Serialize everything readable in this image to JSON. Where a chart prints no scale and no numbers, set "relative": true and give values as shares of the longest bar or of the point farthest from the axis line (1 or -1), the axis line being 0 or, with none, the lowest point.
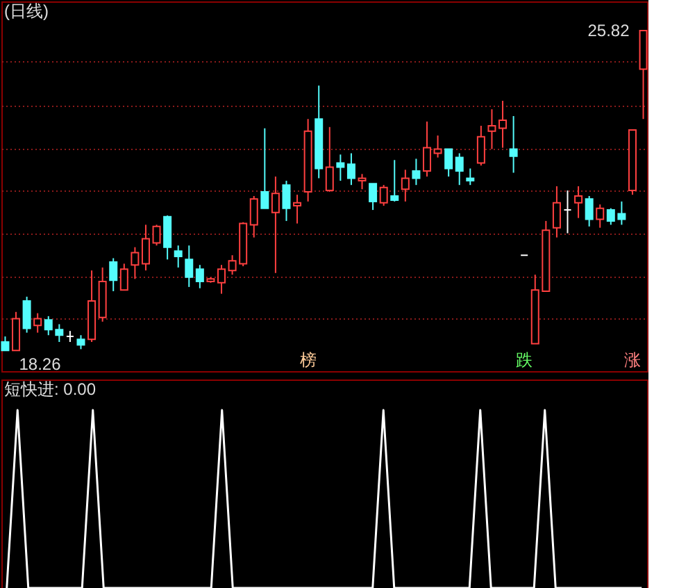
{
  "chart_data": [
    {
      "type": "candlestick",
      "title": "(日线)",
      "categories": [
        null,
        null,
        null,
        null,
        null,
        null,
        null,
        null,
        null,
        null,
        null,
        null,
        null,
        null,
        null,
        null,
        null,
        null,
        null,
        null,
        null,
        null,
        null,
        null,
        null,
        null,
        null,
        null,
        null,
        null,
        null,
        null,
        null,
        null,
        null,
        null,
        null,
        null,
        null,
        null,
        null,
        null,
        null,
        null,
        null,
        null,
        null,
        null,
        null,
        null,
        null,
        null,
        null,
        null,
        null,
        null,
        null,
        null,
        null,
        null
      ],
      "ohlc": [
        [
          18.46,
          18.59,
          18.26,
          18.26
        ],
        [
          18.26,
          19.17,
          18.26,
          19.01
        ],
        [
          19.43,
          19.53,
          18.68,
          18.78
        ],
        [
          18.85,
          19.14,
          18.68,
          19.01
        ],
        [
          18.98,
          19.07,
          18.62,
          18.75
        ],
        [
          18.75,
          18.88,
          18.46,
          18.62
        ],
        [
          18.59,
          18.72,
          18.46,
          18.59
        ],
        [
          18.52,
          18.62,
          18.29,
          18.39
        ],
        [
          18.52,
          20.15,
          18.46,
          19.43
        ],
        [
          19.04,
          20.22,
          18.94,
          19.89
        ],
        [
          20.35,
          20.44,
          19.66,
          19.92
        ],
        [
          19.69,
          20.31,
          19.69,
          20.18
        ],
        [
          20.28,
          20.7,
          19.95,
          20.57
        ],
        [
          20.31,
          21.23,
          20.15,
          20.9
        ],
        [
          20.8,
          21.23,
          20.74,
          21.19
        ],
        [
          21.42,
          21.45,
          20.41,
          20.7
        ],
        [
          20.61,
          20.74,
          20.22,
          20.48
        ],
        [
          20.41,
          20.74,
          19.76,
          19.99
        ],
        [
          20.18,
          20.28,
          19.73,
          19.89
        ],
        [
          19.89,
          19.99,
          19.86,
          19.95
        ],
        [
          19.86,
          20.28,
          19.6,
          20.18
        ],
        [
          20.15,
          20.51,
          20.05,
          20.38
        ],
        [
          20.31,
          21.29,
          20.25,
          21.26
        ],
        [
          21.23,
          21.91,
          20.93,
          21.84
        ],
        [
          22.01,
          23.51,
          21.62,
          21.62
        ],
        [
          21.52,
          22.37,
          20.09,
          21.97
        ],
        [
          22.17,
          22.27,
          21.32,
          21.62
        ],
        [
          21.68,
          21.94,
          21.26,
          21.75
        ],
        [
          22.01,
          23.73,
          21.78,
          23.44
        ],
        [
          23.73,
          24.52,
          22.33,
          22.56
        ],
        [
          22.04,
          23.54,
          22.01,
          22.59
        ],
        [
          22.69,
          22.89,
          22.27,
          22.59
        ],
        [
          22.66,
          22.92,
          22.17,
          22.33
        ],
        [
          22.27,
          22.43,
          22.07,
          22.33
        ],
        [
          22.2,
          22.2,
          21.58,
          21.78
        ],
        [
          21.75,
          22.17,
          21.68,
          22.11
        ],
        [
          21.91,
          22.76,
          21.78,
          21.81
        ],
        [
          22.07,
          22.53,
          21.78,
          22.33
        ],
        [
          22.5,
          22.79,
          22.17,
          22.33
        ],
        [
          22.5,
          23.67,
          22.37,
          23.05
        ],
        [
          22.92,
          23.34,
          22.82,
          23.02
        ],
        [
          23.02,
          23.02,
          22.37,
          22.56
        ],
        [
          22.82,
          22.92,
          22.17,
          22.5
        ],
        [
          22.33,
          22.56,
          22.17,
          22.27
        ],
        [
          22.69,
          23.57,
          22.63,
          23.31
        ],
        [
          23.44,
          23.96,
          23.02,
          23.57
        ],
        [
          23.51,
          24.16,
          23.05,
          23.7
        ],
        [
          23.02,
          23.8,
          22.46,
          22.85
        ],
        [
          20.51,
          20.51,
          20.51,
          20.51
        ],
        [
          18.42,
          20.05,
          18.42,
          19.69
        ],
        [
          19.66,
          21.32,
          19.66,
          21.1
        ],
        [
          21.16,
          22.14,
          20.93,
          21.75
        ],
        [
          21.58,
          22.04,
          21.03,
          21.58
        ],
        [
          21.75,
          22.14,
          21.39,
          21.91
        ],
        [
          21.84,
          21.91,
          21.19,
          21.36
        ],
        [
          21.36,
          21.71,
          21.16,
          21.62
        ],
        [
          21.58,
          21.62,
          21.23,
          21.32
        ],
        [
          21.49,
          21.78,
          21.23,
          21.36
        ],
        [
          22.04,
          23.47,
          21.94,
          23.47
        ],
        [
          24.91,
          25.82,
          23.73,
          25.82
        ]
      ],
      "colors": [
        "#54fcfc",
        "#ff4040",
        "#54fcfc",
        "#ff4040",
        "#54fcfc",
        "#54fcfc",
        "#ffffff",
        "#54fcfc",
        "#ff4040",
        "#ff4040",
        "#54fcfc",
        "#ff4040",
        "#ff4040",
        "#ff4040",
        "#ff4040",
        "#54fcfc",
        "#54fcfc",
        "#54fcfc",
        "#54fcfc",
        "#ff4040",
        "#ff4040",
        "#ff4040",
        "#ff4040",
        "#ff4040",
        "#54fcfc",
        "#ff4040",
        "#54fcfc",
        "#ff4040",
        "#ff4040",
        "#54fcfc",
        "#ff4040",
        "#54fcfc",
        "#54fcfc",
        "#ff4040",
        "#54fcfc",
        "#ff4040",
        "#54fcfc",
        "#ff4040",
        "#54fcfc",
        "#ff4040",
        "#ff4040",
        "#54fcfc",
        "#54fcfc",
        "#54fcfc",
        "#ff4040",
        "#ff4040",
        "#ff4040",
        "#54fcfc",
        "#ffffff",
        "#ff4040",
        "#ff4040",
        "#ff4040",
        "#ffffff",
        "#ff4040",
        "#54fcfc",
        "#ff4040",
        "#54fcfc",
        "#54fcfc",
        "#ff4040",
        "#ff4040"
      ],
      "ylim": [
        17.77,
        26.51
      ],
      "yticks": [
        {
          "value": 19.01,
          "label": null
        },
        {
          "value": 19.99,
          "label": null
        },
        {
          "value": 21.03,
          "label": null
        },
        {
          "value": 22.04,
          "label": null
        },
        {
          "value": 23.02,
          "label": null
        },
        {
          "value": 24.06,
          "label": null
        },
        {
          "value": 25.1,
          "label": null
        }
      ],
      "grid": true,
      "tick_labels": false,
      "annotations": [
        "25.82",
        "18.26",
        "榜",
        "跌",
        "涨"
      ]
    },
    {
      "type": "line",
      "title": "短快进: 0.00",
      "relative": true,
      "tick_labels": false,
      "categories": [
        null,
        null,
        null,
        null,
        null,
        null,
        null,
        null,
        null,
        null,
        null,
        null,
        null,
        null,
        null,
        null,
        null,
        null,
        null,
        null,
        null,
        null,
        null,
        null,
        null,
        null,
        null,
        null,
        null,
        null,
        null,
        null,
        null,
        null,
        null,
        null,
        null,
        null,
        null,
        null,
        null,
        null,
        null,
        null,
        null,
        null,
        null,
        null,
        null,
        null,
        null,
        null,
        null,
        null,
        null,
        null,
        null,
        null,
        null,
        null
      ],
      "series": [
        {
          "color": "#ffffff",
          "values": [
            0,
            1,
            0,
            0,
            0,
            0,
            0,
            0,
            1,
            0,
            0,
            0,
            0,
            0,
            0,
            0,
            0,
            0,
            0,
            0,
            1,
            0,
            0,
            0,
            0,
            0,
            0,
            0,
            0,
            0,
            0,
            0,
            0,
            0,
            0,
            1,
            0,
            0,
            0,
            0,
            0,
            0,
            0,
            0,
            1,
            0,
            0,
            0,
            0,
            0,
            1,
            0,
            0,
            0,
            0,
            0,
            0,
            0,
            0,
            0
          ]
        }
      ]
    }
  ]
}
